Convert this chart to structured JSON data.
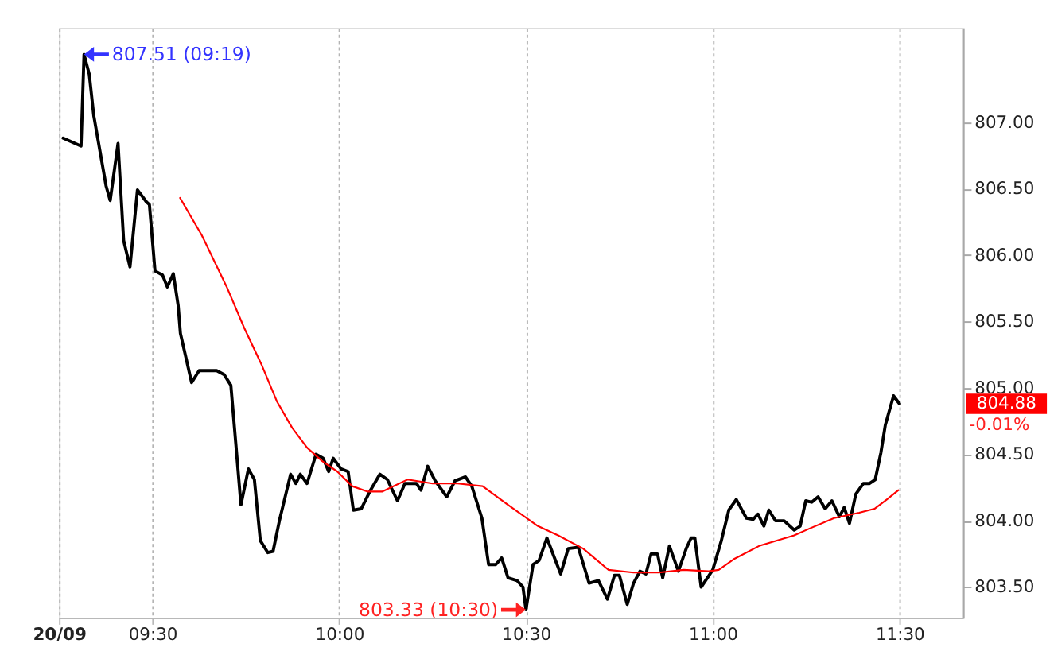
{
  "chart_data": {
    "type": "line",
    "xlim": [
      9.25,
      11.67
    ],
    "xticks": [
      {
        "value": 9.25,
        "label": "20/09"
      },
      {
        "value": 9.5,
        "label": "09:30"
      },
      {
        "value": 10,
        "label": "10:00"
      },
      {
        "value": 10.5,
        "label": "10:30"
      },
      {
        "value": 11,
        "label": "11:00"
      },
      {
        "value": 11.5,
        "label": "11:30"
      }
    ],
    "ylim": [
      803.27,
      807.71
    ],
    "yticks": [
      {
        "value": 803.5,
        "label": "803.50"
      },
      {
        "value": 804,
        "label": "804.00"
      },
      {
        "value": 804.5,
        "label": "804.50"
      },
      {
        "value": 805,
        "label": "805.00"
      },
      {
        "value": 805.5,
        "label": "805.50"
      },
      {
        "value": 806,
        "label": "806.00"
      },
      {
        "value": 806.5,
        "label": "806.50"
      },
      {
        "value": 807,
        "label": "807.00"
      }
    ],
    "grid": "x",
    "series": [
      {
        "color": "#000000",
        "x": [
          9.261,
          9.309,
          9.317,
          9.331,
          9.343,
          9.376,
          9.387,
          9.408,
          9.423,
          9.44,
          9.46,
          9.484,
          9.492,
          9.507,
          9.527,
          9.54,
          9.556,
          9.569,
          9.575,
          9.605,
          9.625,
          9.672,
          9.692,
          9.71,
          9.723,
          9.737,
          9.757,
          9.773,
          9.789,
          9.809,
          9.823,
          9.84,
          9.87,
          9.884,
          9.896,
          9.914,
          9.938,
          9.957,
          9.972,
          9.984,
          10.005,
          10.024,
          10.038,
          10.059,
          10.082,
          10.109,
          10.129,
          10.156,
          10.176,
          10.207,
          10.219,
          10.237,
          10.257,
          10.288,
          10.31,
          10.338,
          10.355,
          10.382,
          10.4,
          10.419,
          10.435,
          10.452,
          10.476,
          10.492,
          10.5,
          10.519,
          10.535,
          10.556,
          10.575,
          10.593,
          10.613,
          10.64,
          10.669,
          10.694,
          10.718,
          10.737,
          10.75,
          10.771,
          10.788,
          10.805,
          10.821,
          10.835,
          10.852,
          10.866,
          10.884,
          10.908,
          10.929,
          10.942,
          10.952,
          10.969,
          11.0,
          11.023,
          11.043,
          11.063,
          11.09,
          11.108,
          11.121,
          11.137,
          11.15,
          11.168,
          11.191,
          11.218,
          11.234,
          11.249,
          11.265,
          11.282,
          11.301,
          11.319,
          11.339,
          11.352,
          11.366,
          11.383,
          11.403,
          11.419,
          11.435,
          11.45,
          11.462,
          11.484,
          11.5
        ],
        "values": [
          806.88,
          806.82,
          807.51,
          807.36,
          807.05,
          806.52,
          806.41,
          806.84,
          806.11,
          805.91,
          806.49,
          806.4,
          806.38,
          805.88,
          805.85,
          805.76,
          805.86,
          805.62,
          805.41,
          805.04,
          805.13,
          805.13,
          805.1,
          805.02,
          804.59,
          804.12,
          804.39,
          804.31,
          803.85,
          803.76,
          803.77,
          804.0,
          804.35,
          804.28,
          804.35,
          804.28,
          804.5,
          804.47,
          804.37,
          804.47,
          804.39,
          804.37,
          804.08,
          804.09,
          804.22,
          804.35,
          804.31,
          804.15,
          804.28,
          804.28,
          804.23,
          804.41,
          804.3,
          804.18,
          804.3,
          804.33,
          804.26,
          804.02,
          803.67,
          803.67,
          803.72,
          803.57,
          803.55,
          803.5,
          803.33,
          803.67,
          803.7,
          803.87,
          803.73,
          803.6,
          803.79,
          803.8,
          803.53,
          803.55,
          803.41,
          803.59,
          803.59,
          803.37,
          803.53,
          803.62,
          803.6,
          803.75,
          803.75,
          803.57,
          803.81,
          803.62,
          803.79,
          803.87,
          803.87,
          803.5,
          803.63,
          803.85,
          804.08,
          804.16,
          804.02,
          804.01,
          804.05,
          803.96,
          804.08,
          804.0,
          804.0,
          803.93,
          803.96,
          804.15,
          804.14,
          804.18,
          804.09,
          804.15,
          804.03,
          804.1,
          803.98,
          804.2,
          804.28,
          804.28,
          804.31,
          804.51,
          804.72,
          804.94,
          804.88
        ]
      },
      {
        "color": "#ff0000",
        "x": [
          9.574,
          9.632,
          9.699,
          9.746,
          9.793,
          9.833,
          9.874,
          9.914,
          9.954,
          9.995,
          10.035,
          10.075,
          10.116,
          10.183,
          10.25,
          10.317,
          10.384,
          10.452,
          10.532,
          10.586,
          10.653,
          10.721,
          10.788,
          10.855,
          10.922,
          10.989,
          11.016,
          11.056,
          11.124,
          11.218,
          11.258,
          11.325,
          11.392,
          11.433,
          11.466,
          11.497
        ],
        "values": [
          806.43,
          806.15,
          805.76,
          805.45,
          805.17,
          804.9,
          804.7,
          804.55,
          804.45,
          804.37,
          804.26,
          804.22,
          804.22,
          804.31,
          804.28,
          804.28,
          804.26,
          804.12,
          803.96,
          803.89,
          803.79,
          803.63,
          803.61,
          803.61,
          803.63,
          803.62,
          803.63,
          803.71,
          803.81,
          803.89,
          803.94,
          804.02,
          804.06,
          804.09,
          804.16,
          804.23
        ]
      }
    ],
    "annotations": [
      {
        "text": "807.51 (09:19)",
        "x": 9.317,
        "y": 807.51
      },
      {
        "text": "803.33 (10:30)",
        "x": 10.5,
        "y": 803.33
      },
      "804.88",
      "-0.01%"
    ]
  }
}
